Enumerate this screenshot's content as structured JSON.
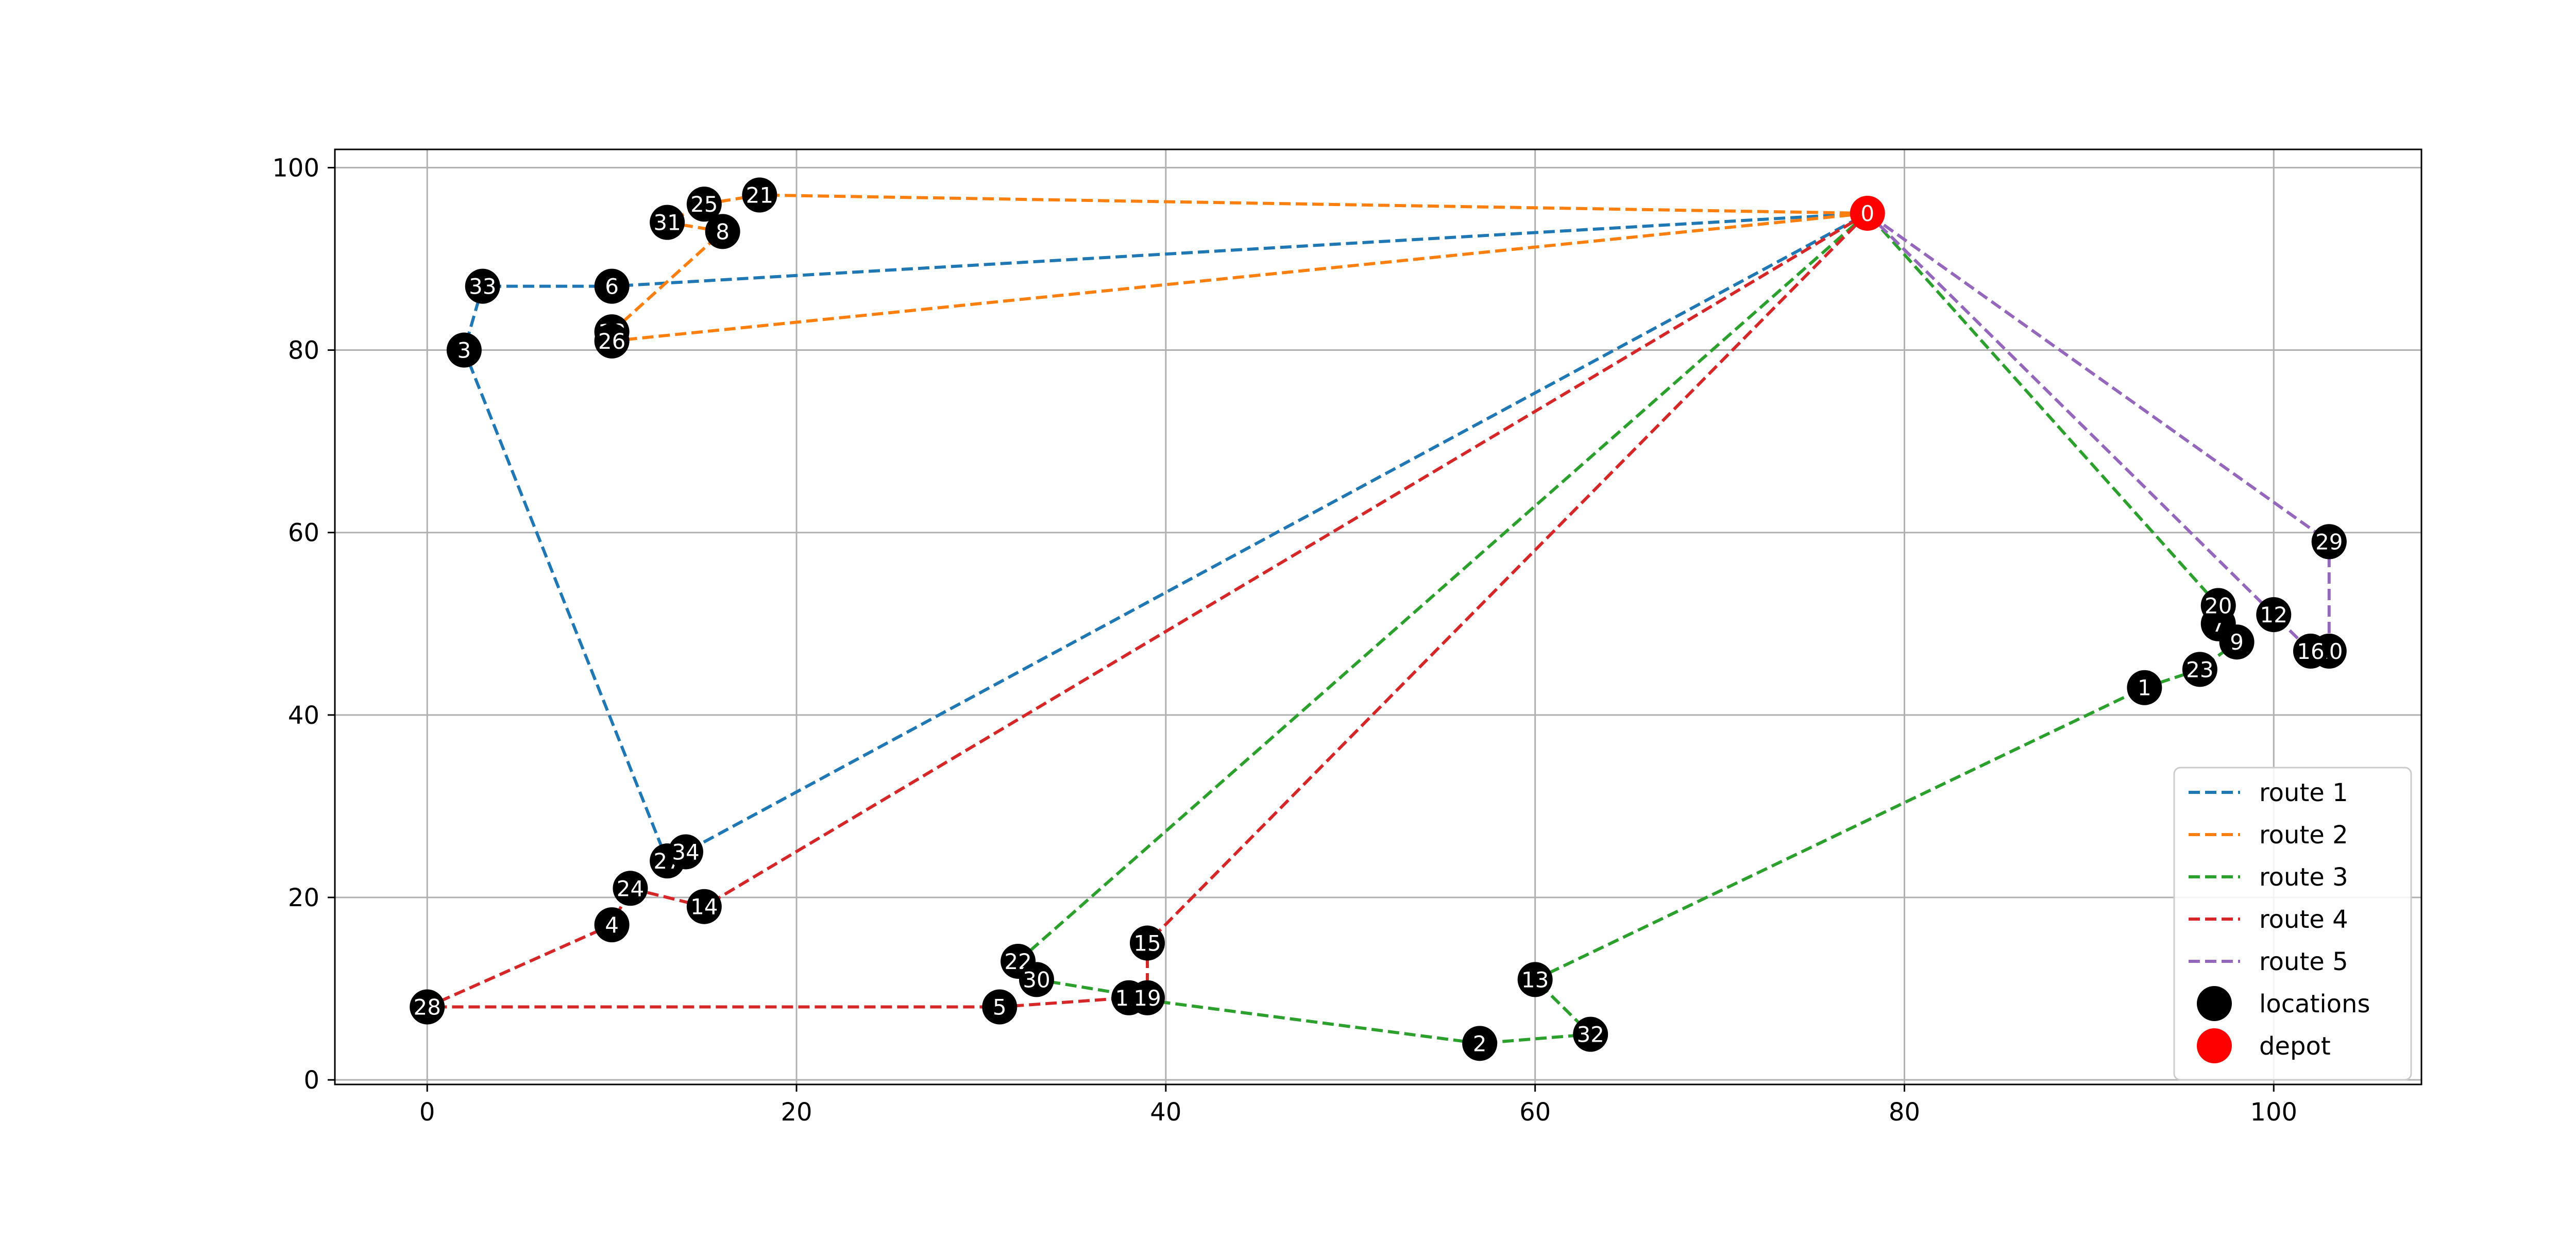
{
  "chart_data": {
    "type": "scatter",
    "title": "",
    "xlabel": "",
    "ylabel": "",
    "xlim": [
      -5,
      108
    ],
    "ylim": [
      -0.5,
      102
    ],
    "xticks": [
      0,
      20,
      40,
      60,
      80,
      100
    ],
    "yticks": [
      0,
      20,
      40,
      60,
      80,
      100
    ],
    "grid": true,
    "legend_position": "bottom-right",
    "colors": {
      "route1": "#1f77b4",
      "route2": "#ff7f0e",
      "route3": "#2ca02c",
      "route4": "#d62728",
      "route5": "#9467bd",
      "locations": "#000000",
      "depot": "#ff0000"
    },
    "depot": {
      "id": "0",
      "x": 78,
      "y": 95
    },
    "locations": [
      {
        "id": "1",
        "x": 93,
        "y": 43
      },
      {
        "id": "2",
        "x": 57,
        "y": 4
      },
      {
        "id": "3",
        "x": 2,
        "y": 80
      },
      {
        "id": "4",
        "x": 10,
        "y": 17
      },
      {
        "id": "5",
        "x": 31,
        "y": 8
      },
      {
        "id": "6",
        "x": 10,
        "y": 87
      },
      {
        "id": "7",
        "x": 97,
        "y": 50
      },
      {
        "id": "8",
        "x": 16,
        "y": 93
      },
      {
        "id": "9",
        "x": 98,
        "y": 48
      },
      {
        "id": "10",
        "x": 103,
        "y": 47
      },
      {
        "id": "11",
        "x": 38,
        "y": 9
      },
      {
        "id": "12",
        "x": 100,
        "y": 51
      },
      {
        "id": "13",
        "x": 60,
        "y": 11
      },
      {
        "id": "14",
        "x": 15,
        "y": 19
      },
      {
        "id": "15",
        "x": 39,
        "y": 15
      },
      {
        "id": "16",
        "x": 102,
        "y": 47
      },
      {
        "id": "17",
        "x": 103,
        "y": 59
      },
      {
        "id": "18",
        "x": 10,
        "y": 82
      },
      {
        "id": "19",
        "x": 39,
        "y": 9
      },
      {
        "id": "20",
        "x": 97,
        "y": 52
      },
      {
        "id": "21",
        "x": 18,
        "y": 97
      },
      {
        "id": "22",
        "x": 32,
        "y": 13
      },
      {
        "id": "23",
        "x": 96,
        "y": 45
      },
      {
        "id": "24",
        "x": 11,
        "y": 21
      },
      {
        "id": "25",
        "x": 15,
        "y": 96
      },
      {
        "id": "26",
        "x": 10,
        "y": 81
      },
      {
        "id": "27",
        "x": 13,
        "y": 24
      },
      {
        "id": "28",
        "x": 0,
        "y": 8
      },
      {
        "id": "29",
        "x": 103,
        "y": 59
      },
      {
        "id": "30",
        "x": 33,
        "y": 11
      },
      {
        "id": "31",
        "x": 13,
        "y": 94
      },
      {
        "id": "32",
        "x": 63,
        "y": 5
      },
      {
        "id": "33",
        "x": 3,
        "y": 87
      },
      {
        "id": "34",
        "x": 14,
        "y": 25
      }
    ],
    "series": [
      {
        "name": "route 1",
        "color": "#1f77b4",
        "stops": [
          "0",
          "6",
          "33",
          "3",
          "27",
          "34",
          "0"
        ]
      },
      {
        "name": "route 2",
        "color": "#ff7f0e",
        "stops": [
          "0",
          "21",
          "25",
          "31",
          "8",
          "18",
          "26",
          "0"
        ]
      },
      {
        "name": "route 3",
        "color": "#2ca02c",
        "stops": [
          "0",
          "22",
          "30",
          "19",
          "11",
          "2",
          "32",
          "13",
          "1",
          "23",
          "9",
          "7",
          "20",
          "0"
        ]
      },
      {
        "name": "route 4",
        "color": "#d62728",
        "stops": [
          "0",
          "14",
          "24",
          "4",
          "28",
          "5",
          "11",
          "19",
          "15",
          "0"
        ]
      },
      {
        "name": "route 5",
        "color": "#9467bd",
        "stops": [
          "0",
          "12",
          "16",
          "10",
          "29",
          "17",
          "0"
        ]
      }
    ],
    "legend": [
      {
        "label": "route 1",
        "kind": "line",
        "color": "#1f77b4"
      },
      {
        "label": "route 2",
        "kind": "line",
        "color": "#ff7f0e"
      },
      {
        "label": "route 3",
        "kind": "line",
        "color": "#2ca02c"
      },
      {
        "label": "route 4",
        "kind": "line",
        "color": "#d62728"
      },
      {
        "label": "route 5",
        "kind": "line",
        "color": "#9467bd"
      },
      {
        "label": "locations",
        "kind": "marker",
        "color": "#000000"
      },
      {
        "label": "depot",
        "kind": "marker",
        "color": "#ff0000"
      }
    ]
  }
}
